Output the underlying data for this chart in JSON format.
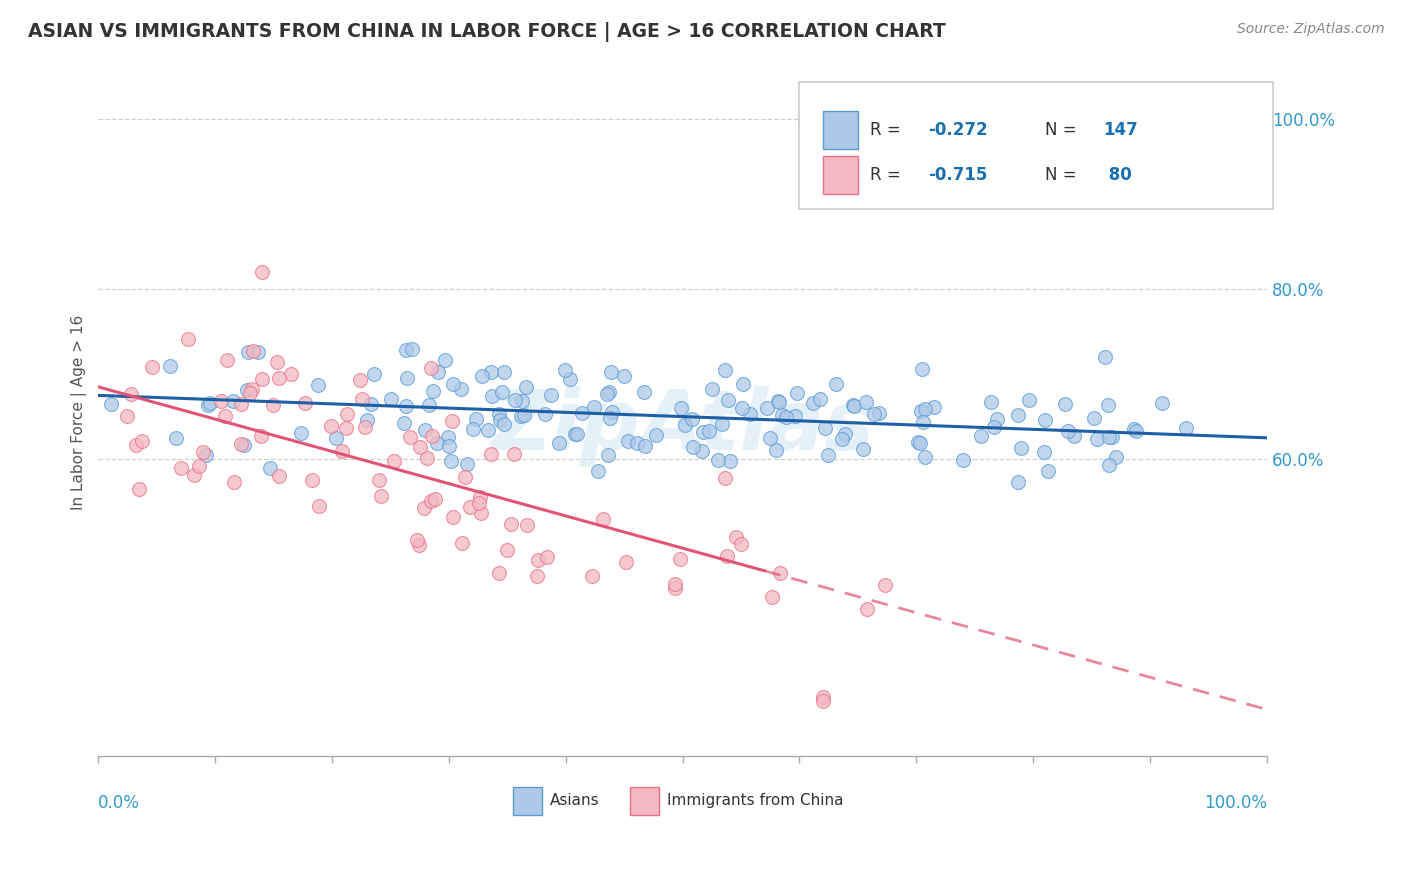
{
  "title": "ASIAN VS IMMIGRANTS FROM CHINA IN LABOR FORCE | AGE > 16 CORRELATION CHART",
  "source": "Source: ZipAtlas.com",
  "ylabel": "In Labor Force | Age > 16",
  "xmin": 0.0,
  "xmax": 1.0,
  "ymin": 0.25,
  "ymax": 1.06,
  "ytick_vals": [
    0.6,
    0.8,
    1.0
  ],
  "ytick_labels": [
    "60.0%",
    "80.0%",
    "100.0%"
  ],
  "R_asian": -0.272,
  "N_asian": 147,
  "R_china": -0.715,
  "N_china": 80,
  "blue_fill": "#aec9e8",
  "blue_edge": "#5b9bd5",
  "pink_fill": "#f4b8c1",
  "pink_edge": "#e8728a",
  "line_blue": "#1f5fa6",
  "line_pink": "#e05575",
  "watermark": "ZipAtlas",
  "watermark_color": "#d5e8f5",
  "background_color": "#ffffff",
  "legend_border": "#cccccc",
  "legend_R_color": "#1a6faf",
  "grid_color": "#d0d0d0",
  "axis_color": "#aaaaaa",
  "title_color": "#333333",
  "source_color": "#888888",
  "ylabel_color": "#555555",
  "tick_label_color": "#3399cc"
}
